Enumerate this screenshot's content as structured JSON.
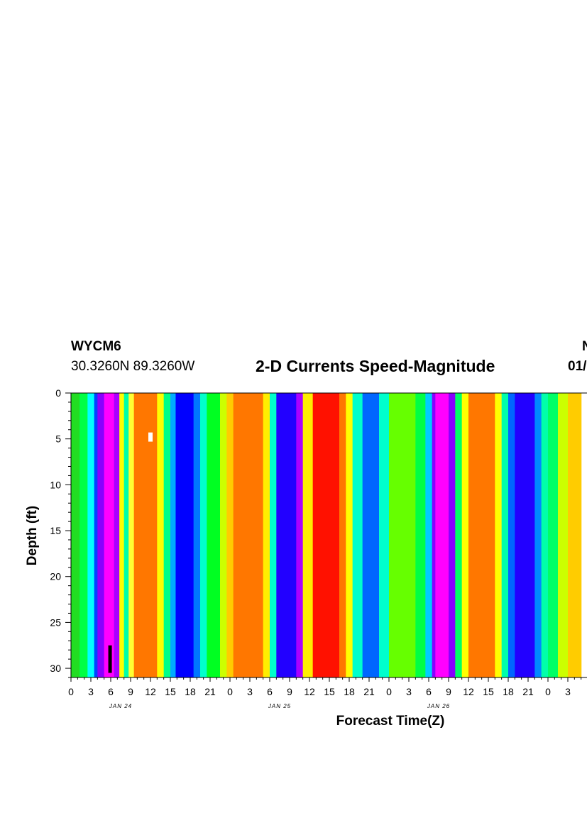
{
  "header": {
    "station": "WYCM6",
    "coords": "30.3260N 89.3260W",
    "title": "2-D Currents Speed-Magnitude",
    "right_line1": "N",
    "right_line2": "01/"
  },
  "chart_data": {
    "type": "heatmap",
    "title": "2-D Currents Speed-Magnitude",
    "xlabel": "Forecast Time(Z)",
    "ylabel": "Depth (ft)",
    "y_reversed": true,
    "ylim": [
      0,
      31
    ],
    "yticks": [
      0,
      5,
      10,
      15,
      20,
      25,
      30
    ],
    "x_tick_labels": [
      "0",
      "3",
      "6",
      "9",
      "12",
      "15",
      "18",
      "21",
      "0",
      "3",
      "6",
      "9",
      "12",
      "15",
      "18",
      "21",
      "0",
      "3",
      "6",
      "9",
      "12",
      "15",
      "18",
      "21",
      "0",
      "3"
    ],
    "date_labels": [
      {
        "label": "JAN 24",
        "at_tick": 3
      },
      {
        "label": "JAN 25",
        "at_tick": 11
      },
      {
        "label": "JAN 26",
        "at_tick": 19
      }
    ],
    "color_scale": [
      "#00ff00",
      "#00ff88",
      "#00ffff",
      "#0088ff",
      "#0000ff",
      "#8800ff",
      "#ff00ff",
      "#ff0000",
      "#ff7700",
      "#ffff00",
      "#88ff00"
    ],
    "note": "",
    "columns": [
      {
        "x": 0.0,
        "c": "#2ecc1a"
      },
      {
        "x": 0.08,
        "c": "#33dd22"
      },
      {
        "x": 0.16,
        "c": "#66ff00"
      },
      {
        "x": 0.15,
        "c": "#00ff22"
      },
      {
        "x": 0.13,
        "c": "#00ff33"
      },
      {
        "x": 0.2,
        "c": "#00cc66"
      },
      {
        "x": 0.22,
        "c": "#00ff33"
      },
      {
        "x": 0.32,
        "c": "#00ff88"
      },
      {
        "x": 0.34,
        "c": "#00ddff"
      },
      {
        "x": 0.34,
        "c": "#0066ff"
      },
      {
        "x": 0.38,
        "c": "#4400ff"
      },
      {
        "x": 0.43,
        "c": "#aa00ff"
      },
      {
        "x": 0.52,
        "c": "#ff00ff"
      },
      {
        "x": 0.55,
        "c": "#cc00ff"
      },
      {
        "x": 0.65,
        "c": "#ff3300"
      }
    ],
    "bands": [
      {
        "t0": 0.0,
        "t1": 1.3,
        "color": "#22dd22"
      },
      {
        "t0": 1.3,
        "t1": 2.5,
        "color": "#00ff44"
      },
      {
        "t0": 2.5,
        "t1": 3.5,
        "color": "#00ffff"
      },
      {
        "t0": 3.5,
        "t1": 4.0,
        "color": "#0044ff"
      },
      {
        "t0": 4.0,
        "t1": 5.0,
        "color": "#8800ff"
      },
      {
        "t0": 5.0,
        "t1": 6.5,
        "color": "#ff00ff"
      },
      {
        "t0": 6.5,
        "t1": 7.3,
        "color": "#aa00ff"
      },
      {
        "t0": 7.3,
        "t1": 8.0,
        "color": "#ffff00"
      },
      {
        "t0": 8.0,
        "t1": 8.7,
        "color": "#00ffaa"
      },
      {
        "t0": 8.7,
        "t1": 9.5,
        "color": "#ffff33"
      },
      {
        "t0": 9.5,
        "t1": 13.0,
        "color": "#ff7700"
      },
      {
        "t0": 13.0,
        "t1": 14.0,
        "color": "#ffff00"
      },
      {
        "t0": 14.0,
        "t1": 15.0,
        "color": "#00ff88"
      },
      {
        "t0": 15.0,
        "t1": 15.8,
        "color": "#00aaff"
      },
      {
        "t0": 15.8,
        "t1": 18.5,
        "color": "#0000ff"
      },
      {
        "t0": 18.5,
        "t1": 19.5,
        "color": "#0077ff"
      },
      {
        "t0": 19.5,
        "t1": 20.5,
        "color": "#00ffcc"
      },
      {
        "t0": 20.5,
        "t1": 22.5,
        "color": "#00ff22"
      },
      {
        "t0": 22.5,
        "t1": 23.5,
        "color": "#ccff00"
      },
      {
        "t0": 23.5,
        "t1": 24.5,
        "color": "#ffcc00"
      },
      {
        "t0": 24.5,
        "t1": 29.0,
        "color": "#ff7700"
      },
      {
        "t0": 29.0,
        "t1": 30.0,
        "color": "#ffee00"
      },
      {
        "t0": 30.0,
        "t1": 31.0,
        "color": "#00ffcc"
      },
      {
        "t0": 31.0,
        "t1": 34.0,
        "color": "#2200ff"
      },
      {
        "t0": 34.0,
        "t1": 35.0,
        "color": "#aa00ff"
      },
      {
        "t0": 35.0,
        "t1": 36.5,
        "color": "#ffee00"
      },
      {
        "t0": 36.5,
        "t1": 40.5,
        "color": "#ff1100"
      },
      {
        "t0": 40.5,
        "t1": 41.5,
        "color": "#ff7700"
      },
      {
        "t0": 41.5,
        "t1": 42.5,
        "color": "#ffff00"
      },
      {
        "t0": 42.5,
        "t1": 44.0,
        "color": "#00ffcc"
      },
      {
        "t0": 44.0,
        "t1": 46.5,
        "color": "#0066ff"
      },
      {
        "t0": 46.5,
        "t1": 48.0,
        "color": "#00ffcc"
      },
      {
        "t0": 48.0,
        "t1": 52.0,
        "color": "#66ff00"
      },
      {
        "t0": 52.0,
        "t1": 53.5,
        "color": "#00ff44"
      },
      {
        "t0": 53.5,
        "t1": 54.5,
        "color": "#00ccff"
      },
      {
        "t0": 54.5,
        "t1": 55.0,
        "color": "#8800ff"
      },
      {
        "t0": 55.0,
        "t1": 57.0,
        "color": "#ff00ff"
      },
      {
        "t0": 57.0,
        "t1": 58.0,
        "color": "#8800ff"
      },
      {
        "t0": 58.0,
        "t1": 59.0,
        "color": "#00ff66"
      },
      {
        "t0": 59.0,
        "t1": 60.0,
        "color": "#ffff00"
      },
      {
        "t0": 60.0,
        "t1": 64.0,
        "color": "#ff7700"
      },
      {
        "t0": 64.0,
        "t1": 65.0,
        "color": "#ffff00"
      },
      {
        "t0": 65.0,
        "t1": 66.0,
        "color": "#00ffaa"
      },
      {
        "t0": 66.0,
        "t1": 67.0,
        "color": "#0066ff"
      },
      {
        "t0": 67.0,
        "t1": 70.0,
        "color": "#2200ff"
      },
      {
        "t0": 70.0,
        "t1": 71.0,
        "color": "#0088ff"
      },
      {
        "t0": 71.0,
        "t1": 72.0,
        "color": "#00ffaa"
      },
      {
        "t0": 72.0,
        "t1": 73.5,
        "color": "#00ff66"
      },
      {
        "t0": 73.5,
        "t1": 75.0,
        "color": "#ccff00"
      },
      {
        "t0": 75.0,
        "t1": 77.0,
        "color": "#ffcc00"
      }
    ],
    "markers": [
      {
        "name": "white-marker",
        "time": 12.0,
        "depth_top": 4.3,
        "depth_bottom": 5.3,
        "color": "#ffffff"
      },
      {
        "name": "black-marker",
        "time": 5.9,
        "depth_top": 27.5,
        "depth_bottom": 30.5,
        "color": "#000000"
      }
    ]
  }
}
